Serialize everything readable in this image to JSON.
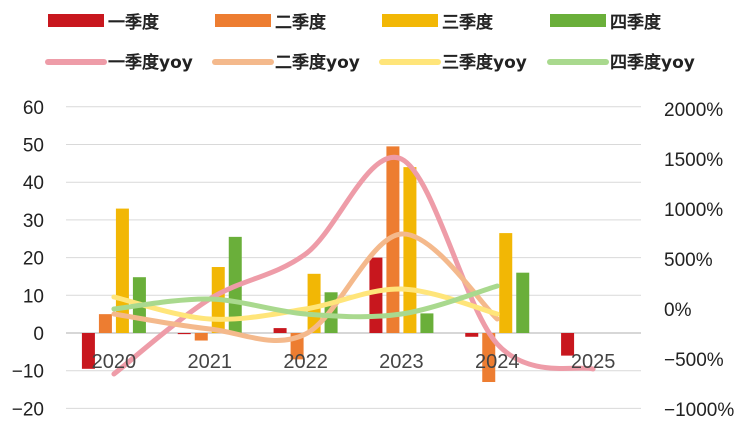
{
  "chart_data": {
    "type": "bar",
    "categories": [
      "2020",
      "2021",
      "2022",
      "2023",
      "2024",
      "2025"
    ],
    "series": [
      {
        "name": "一季度",
        "kind": "bar",
        "color": "#C8171E",
        "values": [
          -9.5,
          -0.3,
          1.3,
          20,
          -1,
          -6
        ]
      },
      {
        "name": "二季度",
        "kind": "bar",
        "color": "#ED7D31",
        "values": [
          5,
          -2,
          -7,
          49.5,
          -13,
          null
        ]
      },
      {
        "name": "三季度",
        "kind": "bar",
        "color": "#F2B705",
        "values": [
          33,
          17.5,
          15.7,
          44,
          26.5,
          null
        ]
      },
      {
        "name": "四季度",
        "kind": "bar",
        "color": "#6AAF3A",
        "values": [
          14.8,
          25.5,
          10.8,
          5.2,
          16,
          null
        ]
      },
      {
        "name": "一季度yoy",
        "kind": "line",
        "axis": "right",
        "color": "#EE9CA8",
        "values": [
          -650,
          100,
          550,
          1500,
          -350,
          -600
        ]
      },
      {
        "name": "二季度yoy",
        "kind": "line",
        "axis": "right",
        "color": "#F4B98C",
        "values": [
          -50,
          -200,
          -250,
          750,
          -100,
          null
        ]
      },
      {
        "name": "三季度yoy",
        "kind": "line",
        "axis": "right",
        "color": "#FFE57A",
        "values": [
          120,
          -100,
          0,
          200,
          -50,
          null
        ]
      },
      {
        "name": "四季度yoy",
        "kind": "line",
        "axis": "right",
        "color": "#A9D98E",
        "values": [
          0,
          100,
          -50,
          -50,
          230,
          null
        ]
      }
    ],
    "ylim": [
      -20,
      60
    ],
    "yticks": [
      "−20",
      "−10",
      "0",
      "10",
      "20",
      "30",
      "40",
      "50",
      "60"
    ],
    "y2lim": [
      -1000,
      2000
    ],
    "y2ticks": [
      "−1000%",
      "−500%",
      "0%",
      "500%",
      "1000%",
      "1500%",
      "2000%"
    ],
    "grid": true,
    "legend_position": "top"
  }
}
